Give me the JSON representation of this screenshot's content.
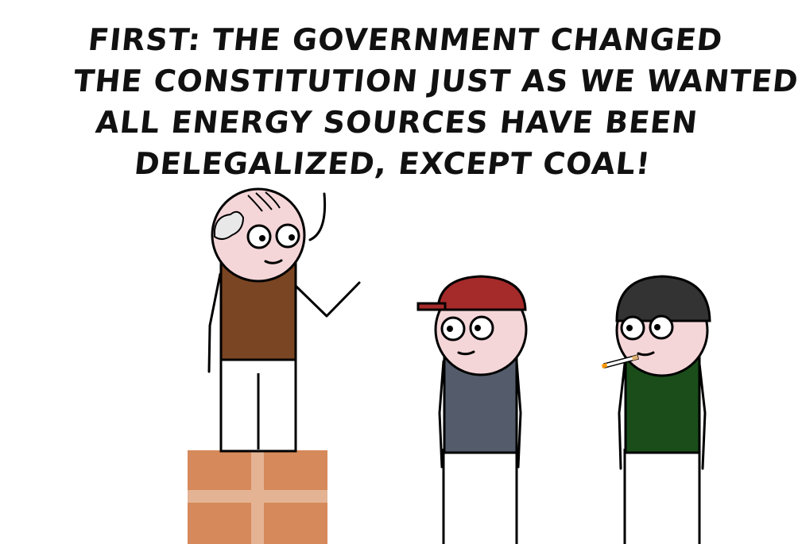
{
  "speech": {
    "lines": [
      "FIRST: THE GOVERNMENT CHANGED",
      "THE CONSTITUTION JUST AS WE WANTED.",
      "ALL ENERGY SOURCES HAVE BEEN",
      "DELEGALIZED, EXCEPT COAL!"
    ]
  },
  "colors": {
    "skin": "#f5d6d8",
    "outline": "#000000",
    "speaker_shirt": "#7a4522",
    "cap_red": "#a52a2a",
    "left_listener_shirt": "#545c6b",
    "beanie": "#333333",
    "right_listener_shirt": "#1a4d1a",
    "box": "#d6895a",
    "box_tape": "#e4b393",
    "bald_patch": "#e8e8e8",
    "cigarette_ember": "#ff9900"
  },
  "characters": [
    {
      "role": "speaker",
      "position": "standing on box"
    },
    {
      "role": "listener",
      "headwear": "red cap"
    },
    {
      "role": "listener",
      "headwear": "black beanie",
      "holds": "cigarette"
    }
  ]
}
